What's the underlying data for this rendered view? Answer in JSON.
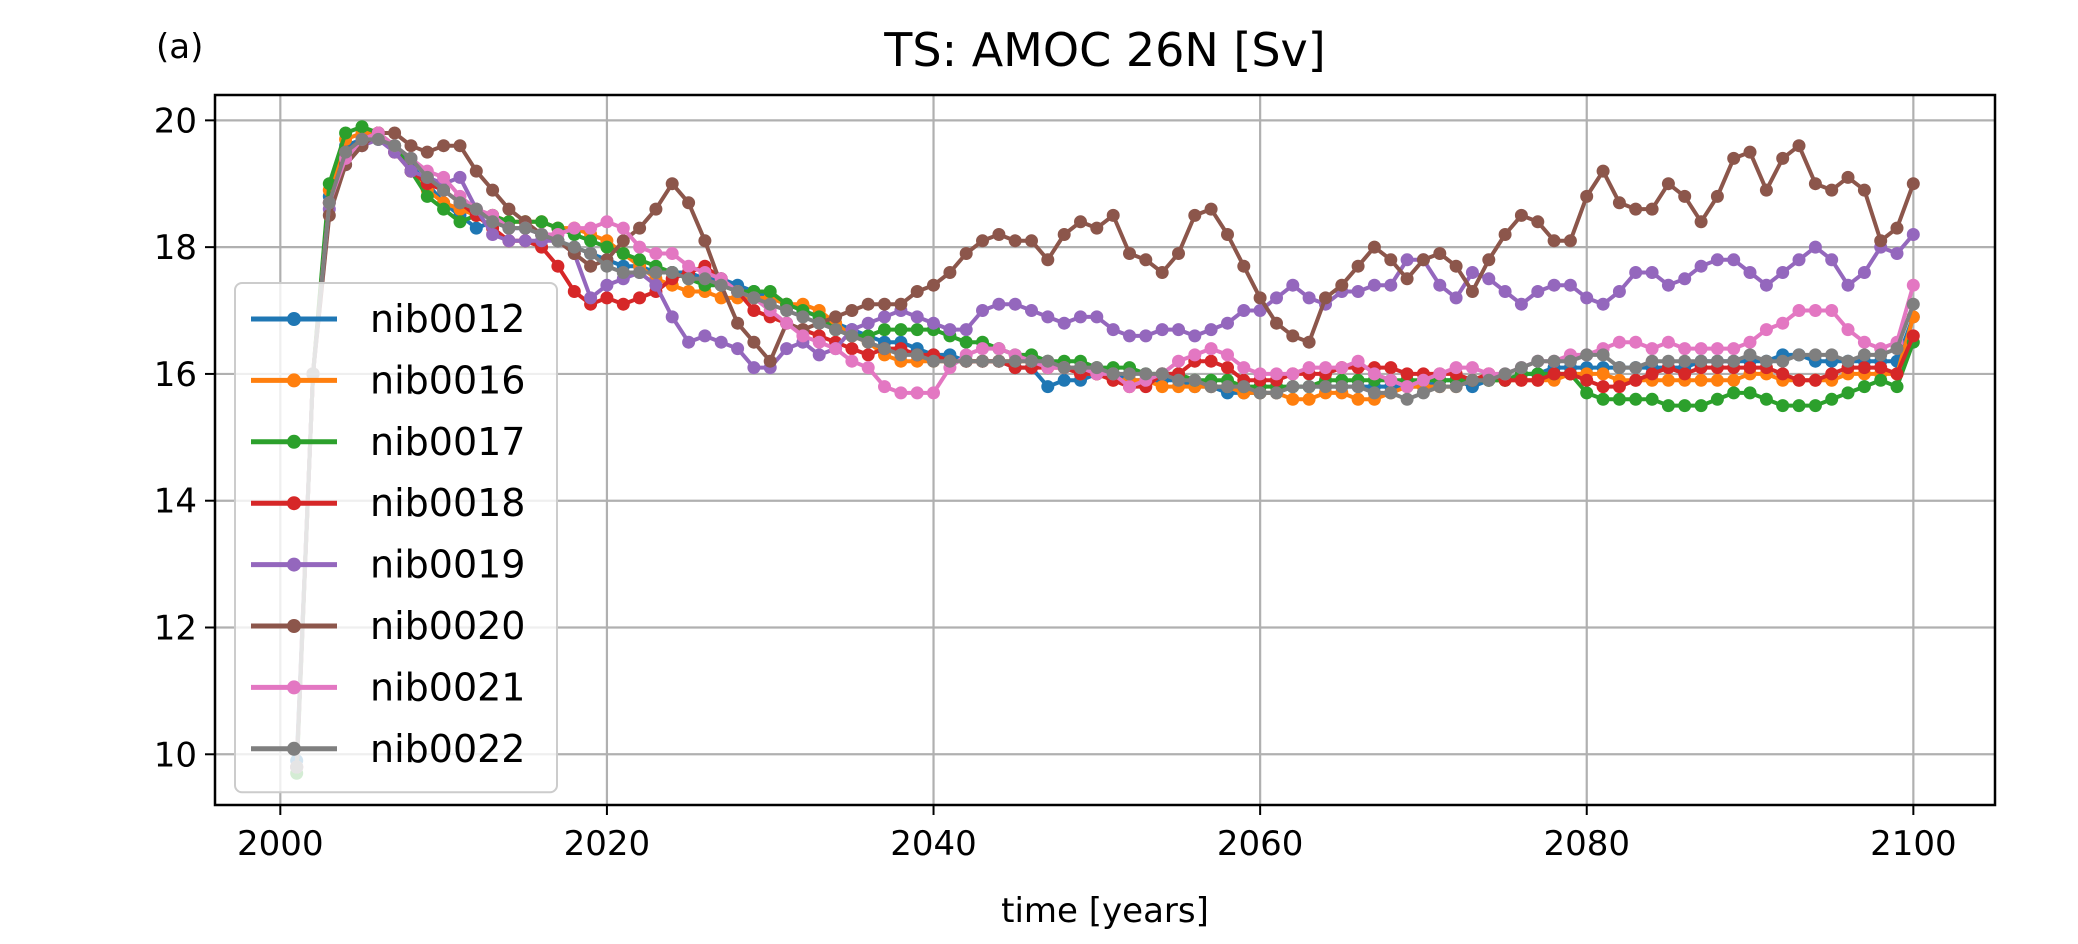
{
  "panel_label": "(a)",
  "chart_data": {
    "type": "line",
    "title": "TS: AMOC 26N [Sv]",
    "xlabel": "time [years]",
    "ylabel": "",
    "xlim": [
      1996,
      2105
    ],
    "ylim": [
      9.2,
      20.4
    ],
    "xticks": [
      2000,
      2020,
      2040,
      2060,
      2080,
      2100
    ],
    "yticks": [
      10,
      12,
      14,
      16,
      18,
      20
    ],
    "grid": true,
    "legend_position": "lower-left",
    "start_year": 2001,
    "series": [
      {
        "name": "nib0012",
        "color": "#1f77b4",
        "values": [
          9.9,
          16.0,
          18.8,
          19.6,
          19.7,
          19.7,
          19.6,
          19.3,
          19.0,
          18.7,
          18.5,
          18.3,
          18.4,
          18.3,
          18.3,
          18.2,
          18.1,
          18.0,
          17.9,
          17.8,
          17.7,
          17.7,
          17.6,
          17.6,
          17.6,
          17.5,
          17.5,
          17.4,
          17.3,
          17.2,
          17.1,
          17.0,
          16.9,
          16.8,
          16.7,
          16.6,
          16.5,
          16.5,
          16.4,
          16.3,
          16.3,
          16.2,
          16.2,
          16.2,
          16.1,
          16.1,
          15.8,
          15.9,
          15.9,
          16.0,
          16.0,
          15.9,
          15.9,
          15.9,
          15.9,
          15.8,
          15.8,
          15.7,
          15.7,
          15.7,
          15.7,
          15.8,
          15.8,
          15.8,
          15.8,
          15.8,
          15.8,
          15.8,
          15.8,
          15.8,
          15.9,
          15.9,
          15.8,
          15.9,
          15.9,
          16.0,
          16.0,
          16.1,
          16.1,
          16.1,
          16.1,
          16.1,
          16.1,
          16.1,
          16.1,
          16.1,
          16.2,
          16.2,
          16.2,
          16.2,
          16.2,
          16.3,
          16.3,
          16.2,
          16.2,
          16.2,
          16.2,
          16.2,
          16.2,
          16.9
        ]
      },
      {
        "name": "nib0016",
        "color": "#ff7f0e",
        "values": [
          9.8,
          16.0,
          18.9,
          19.7,
          19.8,
          19.8,
          19.6,
          19.2,
          18.9,
          18.7,
          18.6,
          18.5,
          18.5,
          18.4,
          18.4,
          18.4,
          18.3,
          18.3,
          18.2,
          18.1,
          17.9,
          17.7,
          17.5,
          17.4,
          17.3,
          17.3,
          17.2,
          17.2,
          17.2,
          17.2,
          17.1,
          17.1,
          17.0,
          16.8,
          16.6,
          16.5,
          16.3,
          16.2,
          16.2,
          16.2,
          16.2,
          16.2,
          16.2,
          16.2,
          16.2,
          16.2,
          16.1,
          16.1,
          16.0,
          16.0,
          15.9,
          15.9,
          15.9,
          15.8,
          15.8,
          15.8,
          15.8,
          15.8,
          15.7,
          15.7,
          15.7,
          15.6,
          15.6,
          15.7,
          15.7,
          15.6,
          15.6,
          15.7,
          15.8,
          15.8,
          15.8,
          15.8,
          15.9,
          15.9,
          15.9,
          15.9,
          15.9,
          15.9,
          16.0,
          16.0,
          16.0,
          15.9,
          15.9,
          15.9,
          15.9,
          15.9,
          15.9,
          15.9,
          15.9,
          16.0,
          16.0,
          15.9,
          15.9,
          15.9,
          15.9,
          16.0,
          16.0,
          16.0,
          16.0,
          16.9
        ]
      },
      {
        "name": "nib0017",
        "color": "#2ca02c",
        "values": [
          9.7,
          16.0,
          19.0,
          19.8,
          19.9,
          19.8,
          19.6,
          19.2,
          18.8,
          18.6,
          18.4,
          18.5,
          18.5,
          18.4,
          18.4,
          18.4,
          18.3,
          18.2,
          18.1,
          18.0,
          17.9,
          17.8,
          17.7,
          17.6,
          17.5,
          17.4,
          17.4,
          17.3,
          17.3,
          17.3,
          17.1,
          17.0,
          16.9,
          16.7,
          16.6,
          16.6,
          16.7,
          16.7,
          16.7,
          16.7,
          16.6,
          16.5,
          16.5,
          16.4,
          16.3,
          16.3,
          16.2,
          16.2,
          16.2,
          16.1,
          16.1,
          16.1,
          16.0,
          16.0,
          16.0,
          15.9,
          15.9,
          15.9,
          15.8,
          15.8,
          15.8,
          15.8,
          15.8,
          15.9,
          15.9,
          15.9,
          15.9,
          15.9,
          15.9,
          15.9,
          15.9,
          15.9,
          15.9,
          15.9,
          15.9,
          16.0,
          16.0,
          16.0,
          16.0,
          15.7,
          15.6,
          15.6,
          15.6,
          15.6,
          15.5,
          15.5,
          15.5,
          15.6,
          15.7,
          15.7,
          15.6,
          15.5,
          15.5,
          15.5,
          15.6,
          15.7,
          15.8,
          15.9,
          15.8,
          16.5
        ]
      },
      {
        "name": "nib0018",
        "color": "#d62728",
        "values": [
          9.8,
          16.0,
          18.7,
          19.5,
          19.7,
          19.8,
          19.5,
          19.2,
          19.0,
          18.9,
          18.7,
          18.5,
          18.3,
          18.1,
          18.1,
          18.0,
          17.7,
          17.3,
          17.1,
          17.2,
          17.1,
          17.2,
          17.3,
          17.5,
          17.6,
          17.7,
          17.5,
          17.3,
          17.0,
          16.9,
          16.8,
          16.7,
          16.6,
          16.5,
          16.4,
          16.3,
          16.4,
          16.4,
          16.3,
          16.3,
          16.2,
          16.2,
          16.2,
          16.2,
          16.1,
          16.1,
          16.1,
          16.1,
          16.0,
          16.0,
          15.9,
          15.8,
          15.8,
          16.0,
          16.0,
          16.2,
          16.2,
          16.1,
          15.9,
          15.9,
          15.9,
          16.0,
          16.0,
          16.0,
          16.1,
          16.1,
          16.1,
          16.1,
          16.0,
          16.0,
          16.0,
          16.0,
          15.9,
          16.0,
          15.9,
          15.9,
          15.9,
          16.0,
          16.0,
          15.9,
          15.8,
          15.8,
          15.9,
          16.0,
          16.1,
          16.0,
          16.1,
          16.1,
          16.1,
          16.1,
          16.1,
          16.0,
          15.9,
          15.9,
          16.0,
          16.1,
          16.1,
          16.1,
          16.0,
          16.6
        ]
      },
      {
        "name": "nib0019",
        "color": "#9467bd",
        "values": [
          9.8,
          16.0,
          18.6,
          19.3,
          19.6,
          19.7,
          19.5,
          19.2,
          19.1,
          19.0,
          19.1,
          18.6,
          18.2,
          18.1,
          18.1,
          18.1,
          18.1,
          17.9,
          17.2,
          17.4,
          17.5,
          17.6,
          17.4,
          16.9,
          16.5,
          16.6,
          16.5,
          16.4,
          16.1,
          16.1,
          16.4,
          16.5,
          16.3,
          16.4,
          16.7,
          16.8,
          16.9,
          17.0,
          16.9,
          16.8,
          16.7,
          16.7,
          17.0,
          17.1,
          17.1,
          17.0,
          16.9,
          16.8,
          16.9,
          16.9,
          16.7,
          16.6,
          16.6,
          16.7,
          16.7,
          16.6,
          16.7,
          16.8,
          17.0,
          17.0,
          17.2,
          17.4,
          17.2,
          17.1,
          17.3,
          17.3,
          17.4,
          17.4,
          17.8,
          17.8,
          17.4,
          17.2,
          17.6,
          17.5,
          17.3,
          17.1,
          17.3,
          17.4,
          17.4,
          17.2,
          17.1,
          17.3,
          17.6,
          17.6,
          17.4,
          17.5,
          17.7,
          17.8,
          17.8,
          17.6,
          17.4,
          17.6,
          17.8,
          18.0,
          17.8,
          17.4,
          17.6,
          18.0,
          17.9,
          18.2
        ]
      },
      {
        "name": "nib0020",
        "color": "#8c564b",
        "values": [
          9.8,
          16.0,
          18.5,
          19.3,
          19.6,
          19.8,
          19.8,
          19.6,
          19.5,
          19.6,
          19.6,
          19.2,
          18.9,
          18.6,
          18.4,
          18.2,
          18.1,
          17.9,
          17.7,
          17.8,
          18.1,
          18.3,
          18.6,
          19.0,
          18.7,
          18.1,
          17.4,
          16.8,
          16.5,
          16.2,
          16.8,
          16.7,
          16.8,
          16.9,
          17.0,
          17.1,
          17.1,
          17.1,
          17.3,
          17.4,
          17.6,
          17.9,
          18.1,
          18.2,
          18.1,
          18.1,
          17.8,
          18.2,
          18.4,
          18.3,
          18.5,
          17.9,
          17.8,
          17.6,
          17.9,
          18.5,
          18.6,
          18.2,
          17.7,
          17.2,
          16.8,
          16.6,
          16.5,
          17.2,
          17.4,
          17.7,
          18.0,
          17.8,
          17.5,
          17.8,
          17.9,
          17.7,
          17.3,
          17.8,
          18.2,
          18.5,
          18.4,
          18.1,
          18.1,
          18.8,
          19.2,
          18.7,
          18.6,
          18.6,
          19.0,
          18.8,
          18.4,
          18.8,
          19.4,
          19.5,
          18.9,
          19.4,
          19.6,
          19.0,
          18.9,
          19.1,
          18.9,
          18.1,
          18.3,
          19.0
        ]
      },
      {
        "name": "nib0021",
        "color": "#e377c2",
        "values": [
          9.8,
          16.0,
          18.7,
          19.4,
          19.7,
          19.8,
          19.6,
          19.4,
          19.2,
          19.1,
          18.8,
          18.6,
          18.5,
          18.3,
          18.3,
          18.2,
          18.2,
          18.3,
          18.3,
          18.4,
          18.3,
          18.0,
          17.9,
          17.9,
          17.7,
          17.6,
          17.5,
          17.3,
          17.2,
          17.0,
          16.8,
          16.6,
          16.5,
          16.4,
          16.2,
          16.1,
          15.8,
          15.7,
          15.7,
          15.7,
          16.1,
          16.3,
          16.4,
          16.4,
          16.3,
          16.2,
          16.1,
          16.1,
          16.1,
          16.0,
          16.0,
          15.8,
          15.9,
          16.0,
          16.2,
          16.3,
          16.4,
          16.3,
          16.1,
          16.0,
          16.0,
          16.0,
          16.1,
          16.1,
          16.1,
          16.2,
          16.0,
          15.9,
          15.8,
          15.9,
          16.0,
          16.1,
          16.1,
          16.0,
          16.0,
          16.1,
          16.2,
          16.2,
          16.3,
          16.3,
          16.4,
          16.5,
          16.5,
          16.4,
          16.5,
          16.4,
          16.4,
          16.4,
          16.4,
          16.5,
          16.7,
          16.8,
          17.0,
          17.0,
          17.0,
          16.7,
          16.5,
          16.4,
          16.5,
          17.4
        ]
      },
      {
        "name": "nib0022",
        "color": "#7f7f7f",
        "values": [
          9.8,
          16.0,
          18.7,
          19.5,
          19.7,
          19.7,
          19.6,
          19.4,
          19.1,
          18.9,
          18.7,
          18.6,
          18.4,
          18.3,
          18.3,
          18.2,
          18.1,
          18.0,
          17.9,
          17.7,
          17.6,
          17.6,
          17.6,
          17.6,
          17.5,
          17.5,
          17.4,
          17.3,
          17.2,
          17.1,
          17.0,
          16.9,
          16.8,
          16.7,
          16.6,
          16.5,
          16.4,
          16.3,
          16.3,
          16.2,
          16.2,
          16.2,
          16.2,
          16.2,
          16.2,
          16.2,
          16.2,
          16.1,
          16.1,
          16.1,
          16.0,
          16.0,
          16.0,
          16.0,
          15.9,
          15.9,
          15.8,
          15.8,
          15.8,
          15.7,
          15.7,
          15.8,
          15.8,
          15.8,
          15.8,
          15.8,
          15.7,
          15.7,
          15.6,
          15.7,
          15.8,
          15.8,
          15.9,
          15.9,
          16.0,
          16.1,
          16.2,
          16.2,
          16.2,
          16.3,
          16.3,
          16.1,
          16.1,
          16.2,
          16.2,
          16.2,
          16.2,
          16.2,
          16.2,
          16.3,
          16.2,
          16.2,
          16.3,
          16.3,
          16.3,
          16.2,
          16.3,
          16.3,
          16.4,
          17.1
        ]
      }
    ]
  }
}
